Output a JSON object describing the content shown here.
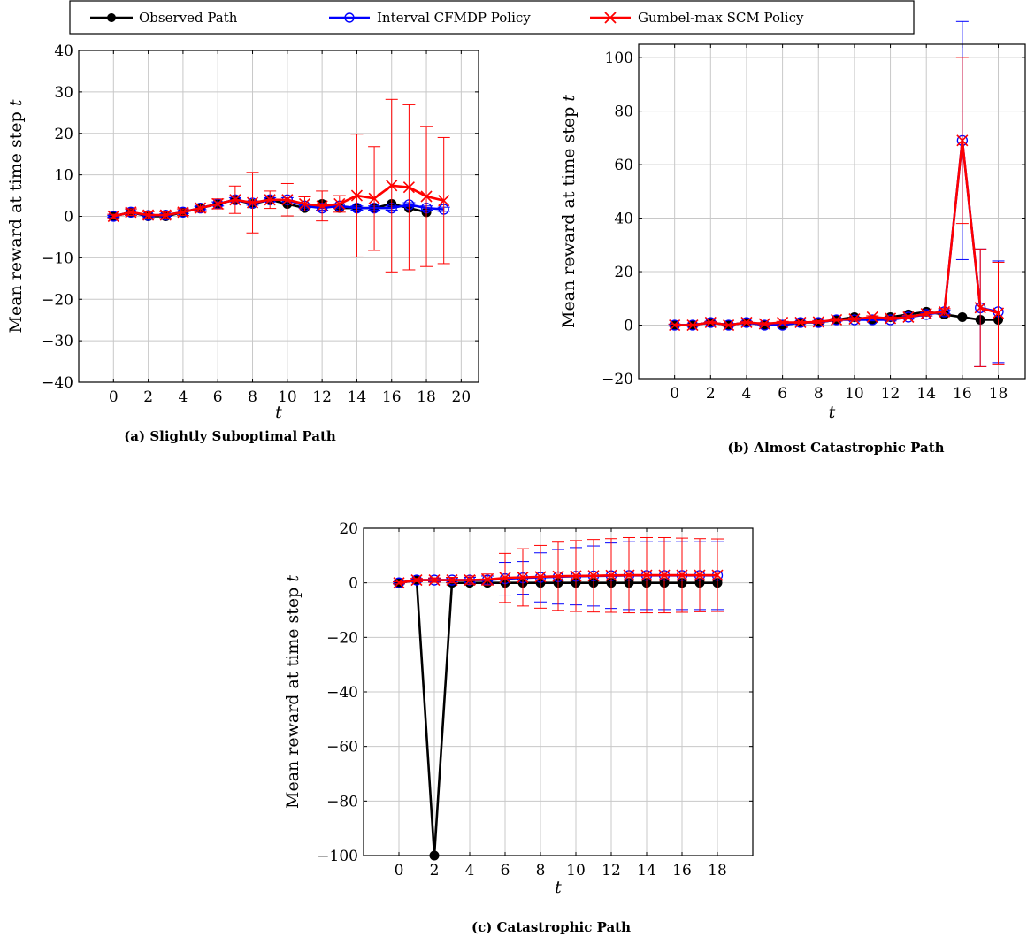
{
  "legend": {
    "items": [
      {
        "label": "Observed Path",
        "color": "#000000",
        "marker": "filled-circle"
      },
      {
        "label": "Interval CFMDP Policy",
        "color": "#0000ff",
        "marker": "open-circle"
      },
      {
        "label": "Gumbel-max SCM Policy",
        "color": "#ff0000",
        "marker": "cross"
      }
    ]
  },
  "chart_data": [
    {
      "type": "line",
      "caption": "(a) Slightly Suboptimal Path",
      "xlabel": "t",
      "ylabel": "Mean reward at time step t",
      "xlim": [
        -2,
        21
      ],
      "ylim": [
        -40,
        40
      ],
      "xticks": [
        0,
        2,
        4,
        6,
        8,
        10,
        12,
        14,
        16,
        18,
        20
      ],
      "yticks": [
        -40,
        -30,
        -20,
        -10,
        0,
        10,
        20,
        30,
        40
      ],
      "grid": true,
      "series": [
        {
          "name": "Observed Path",
          "color": "#000000",
          "marker": "filled-circle",
          "x": [
            0,
            1,
            2,
            3,
            4,
            5,
            6,
            7,
            8,
            9,
            10,
            11,
            12,
            13,
            14,
            15,
            16,
            17,
            18
          ],
          "y": [
            0,
            1,
            0,
            0,
            1,
            2,
            3,
            4,
            3,
            4,
            3,
            2,
            3,
            2,
            2,
            2,
            3,
            2,
            1
          ]
        },
        {
          "name": "Interval CFMDP Policy",
          "color": "#0000ff",
          "marker": "open-circle",
          "x": [
            0,
            1,
            2,
            3,
            4,
            5,
            6,
            7,
            8,
            9,
            10,
            11,
            12,
            13,
            14,
            15,
            16,
            17,
            18,
            19
          ],
          "y": [
            0,
            1,
            0.2,
            0.3,
            1,
            2,
            3,
            4,
            3.2,
            4,
            4,
            2.5,
            2,
            2.5,
            2,
            2,
            2,
            2.8,
            2,
            1.7
          ],
          "err": [
            0.2,
            0.3,
            0.3,
            0.3,
            0.3,
            0.4,
            0.5,
            0.5,
            0.5,
            0.5,
            0.5,
            0.5,
            0.5,
            0.5,
            0.5,
            0.5,
            0.5,
            0.5,
            0.5,
            0.5
          ]
        },
        {
          "name": "Gumbel-max SCM Policy",
          "color": "#ff0000",
          "marker": "cross",
          "x": [
            0,
            1,
            2,
            3,
            4,
            5,
            6,
            7,
            8,
            9,
            10,
            11,
            12,
            13,
            14,
            15,
            16,
            17,
            18,
            19
          ],
          "y": [
            0,
            1,
            0.3,
            0.3,
            1,
            2,
            3,
            4,
            3.3,
            4,
            4,
            3,
            2.5,
            3,
            5,
            4.3,
            7.4,
            7,
            4.8,
            3.8
          ],
          "err": [
            0.5,
            0.8,
            0.8,
            0.8,
            0.8,
            1,
            1.2,
            3.3,
            7.3,
            2.1,
            3.9,
            1.7,
            3.6,
            2,
            14.8,
            12.5,
            20.8,
            19.9,
            16.9,
            15.2
          ]
        }
      ]
    },
    {
      "type": "line",
      "caption": "(b) Almost Catastrophic Path",
      "xlabel": "t",
      "ylabel": "Mean reward at time step t",
      "xlim": [
        -2,
        19.5
      ],
      "ylim": [
        -20,
        105
      ],
      "xticks": [
        0,
        2,
        4,
        6,
        8,
        10,
        12,
        14,
        16,
        18
      ],
      "yticks": [
        -20,
        0,
        20,
        40,
        60,
        80,
        100
      ],
      "grid": true,
      "series": [
        {
          "name": "Observed Path",
          "color": "#000000",
          "marker": "filled-circle",
          "x": [
            0,
            1,
            2,
            3,
            4,
            5,
            6,
            7,
            8,
            9,
            10,
            11,
            12,
            13,
            14,
            15,
            16,
            17,
            18
          ],
          "y": [
            0,
            0,
            1,
            0,
            1,
            0,
            0,
            1,
            1,
            2,
            3,
            2,
            3,
            4,
            5,
            4,
            3,
            2,
            2
          ]
        },
        {
          "name": "Interval CFMDP Policy",
          "color": "#0000ff",
          "marker": "open-circle",
          "x": [
            0,
            1,
            2,
            3,
            4,
            5,
            6,
            7,
            8,
            9,
            10,
            11,
            12,
            13,
            14,
            15,
            16,
            17,
            18
          ],
          "y": [
            0,
            0,
            1,
            0,
            1,
            0,
            0,
            1,
            1,
            2,
            2,
            2,
            2,
            3,
            4,
            5,
            69,
            6.5,
            5
          ],
          "err": [
            0.3,
            0.3,
            0.3,
            0.3,
            0.3,
            0.3,
            0.3,
            0.3,
            0.3,
            0.4,
            0.4,
            0.4,
            0.4,
            0.5,
            0.6,
            0.7,
            44.5,
            22,
            19
          ]
        },
        {
          "name": "Gumbel-max SCM Policy",
          "color": "#ff0000",
          "marker": "cross",
          "x": [
            0,
            1,
            2,
            3,
            4,
            5,
            6,
            7,
            8,
            9,
            10,
            11,
            12,
            13,
            14,
            15,
            16,
            17,
            18
          ],
          "y": [
            0,
            0,
            1,
            0,
            1,
            0.5,
            1,
            1,
            1.2,
            2,
            2.3,
            3,
            2.5,
            3,
            4.3,
            5,
            69,
            6.5,
            4.5
          ],
          "err": [
            0.4,
            0.4,
            0.4,
            0.4,
            0.4,
            0.4,
            0.4,
            0.4,
            0.5,
            0.5,
            0.5,
            0.5,
            0.6,
            0.7,
            0.8,
            1.2,
            31,
            22,
            19
          ]
        }
      ]
    },
    {
      "type": "line",
      "caption": "(c) Catastrophic Path",
      "xlabel": "t",
      "ylabel": "Mean reward at time step t",
      "xlim": [
        -2,
        20
      ],
      "ylim": [
        -100,
        20
      ],
      "xticks": [
        0,
        2,
        4,
        6,
        8,
        10,
        12,
        14,
        16,
        18
      ],
      "yticks": [
        -100,
        -80,
        -60,
        -40,
        -20,
        0,
        20
      ],
      "grid": true,
      "series": [
        {
          "name": "Observed Path",
          "color": "#000000",
          "marker": "filled-circle",
          "x": [
            0,
            1,
            2,
            3,
            4,
            5,
            6,
            7,
            8,
            9,
            10,
            11,
            12,
            13,
            14,
            15,
            16,
            17,
            18
          ],
          "y": [
            0,
            1,
            -100,
            0,
            0,
            0,
            0,
            0,
            0,
            0,
            0,
            0,
            0,
            0,
            0,
            0,
            0,
            0,
            0
          ]
        },
        {
          "name": "Interval CFMDP Policy",
          "color": "#0000ff",
          "marker": "open-circle",
          "x": [
            0,
            1,
            2,
            3,
            4,
            5,
            6,
            7,
            8,
            9,
            10,
            11,
            12,
            13,
            14,
            15,
            16,
            17,
            18
          ],
          "y": [
            0,
            1,
            1,
            1,
            1,
            1,
            1.5,
            1.8,
            2,
            2.2,
            2.4,
            2.5,
            2.6,
            2.7,
            2.7,
            2.7,
            2.7,
            2.7,
            2.7
          ],
          "err": [
            0.3,
            0.5,
            0.6,
            0.8,
            1,
            1.5,
            6,
            6,
            9,
            10,
            10.5,
            11,
            12,
            12.5,
            12.5,
            12.5,
            12.5,
            12.5,
            12.5
          ]
        },
        {
          "name": "Gumbel-max SCM Policy",
          "color": "#ff0000",
          "marker": "cross",
          "x": [
            0,
            1,
            2,
            3,
            4,
            5,
            6,
            7,
            8,
            9,
            10,
            11,
            12,
            13,
            14,
            15,
            16,
            17,
            18
          ],
          "y": [
            0,
            1,
            1,
            1,
            1,
            1.2,
            1.8,
            2,
            2.2,
            2.4,
            2.5,
            2.6,
            2.7,
            2.8,
            2.8,
            2.8,
            2.8,
            2.8,
            2.8
          ],
          "err": [
            0.4,
            0.6,
            0.8,
            1,
            1.5,
            2,
            9,
            10.5,
            11.5,
            12.5,
            13,
            13.3,
            13.5,
            13.8,
            13.8,
            13.8,
            13.6,
            13.4,
            13.3
          ]
        }
      ]
    }
  ]
}
